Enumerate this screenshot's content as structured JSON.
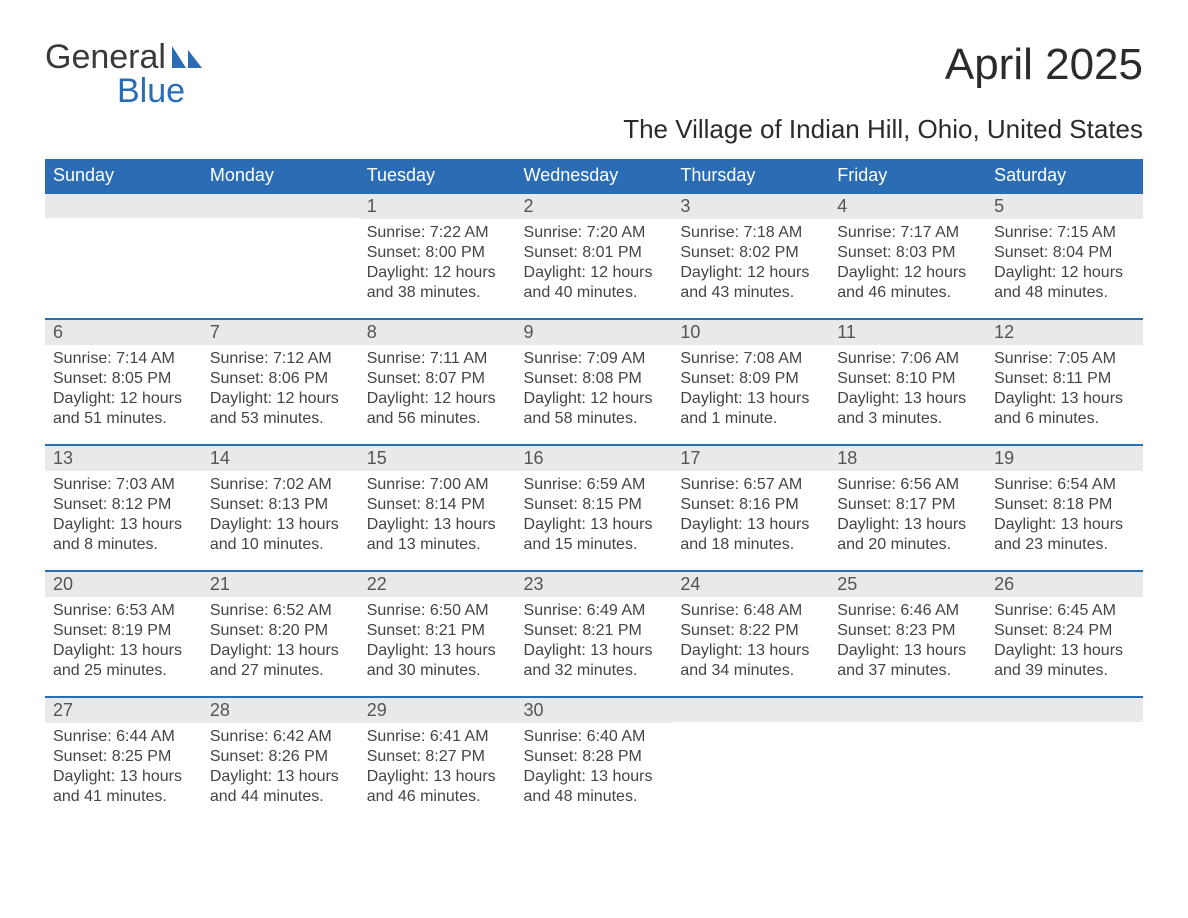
{
  "logo": {
    "line1": "General",
    "line2": "Blue",
    "accent_color": "#2a6db5"
  },
  "title": "April 2025",
  "subtitle": "The Village of Indian Hill, Ohio, United States",
  "header_bg": "#2a6db5",
  "header_text_color": "#ffffff",
  "daynum_bg": "#e9e9e9",
  "row_divider_color": "#2a6db5",
  "columns": [
    "Sunday",
    "Monday",
    "Tuesday",
    "Wednesday",
    "Thursday",
    "Friday",
    "Saturday"
  ],
  "weeks": [
    [
      null,
      null,
      {
        "n": "1",
        "sunrise": "Sunrise: 7:22 AM",
        "sunset": "Sunset: 8:00 PM",
        "daylight": "Daylight: 12 hours and 38 minutes."
      },
      {
        "n": "2",
        "sunrise": "Sunrise: 7:20 AM",
        "sunset": "Sunset: 8:01 PM",
        "daylight": "Daylight: 12 hours and 40 minutes."
      },
      {
        "n": "3",
        "sunrise": "Sunrise: 7:18 AM",
        "sunset": "Sunset: 8:02 PM",
        "daylight": "Daylight: 12 hours and 43 minutes."
      },
      {
        "n": "4",
        "sunrise": "Sunrise: 7:17 AM",
        "sunset": "Sunset: 8:03 PM",
        "daylight": "Daylight: 12 hours and 46 minutes."
      },
      {
        "n": "5",
        "sunrise": "Sunrise: 7:15 AM",
        "sunset": "Sunset: 8:04 PM",
        "daylight": "Daylight: 12 hours and 48 minutes."
      }
    ],
    [
      {
        "n": "6",
        "sunrise": "Sunrise: 7:14 AM",
        "sunset": "Sunset: 8:05 PM",
        "daylight": "Daylight: 12 hours and 51 minutes."
      },
      {
        "n": "7",
        "sunrise": "Sunrise: 7:12 AM",
        "sunset": "Sunset: 8:06 PM",
        "daylight": "Daylight: 12 hours and 53 minutes."
      },
      {
        "n": "8",
        "sunrise": "Sunrise: 7:11 AM",
        "sunset": "Sunset: 8:07 PM",
        "daylight": "Daylight: 12 hours and 56 minutes."
      },
      {
        "n": "9",
        "sunrise": "Sunrise: 7:09 AM",
        "sunset": "Sunset: 8:08 PM",
        "daylight": "Daylight: 12 hours and 58 minutes."
      },
      {
        "n": "10",
        "sunrise": "Sunrise: 7:08 AM",
        "sunset": "Sunset: 8:09 PM",
        "daylight": "Daylight: 13 hours and 1 minute."
      },
      {
        "n": "11",
        "sunrise": "Sunrise: 7:06 AM",
        "sunset": "Sunset: 8:10 PM",
        "daylight": "Daylight: 13 hours and 3 minutes."
      },
      {
        "n": "12",
        "sunrise": "Sunrise: 7:05 AM",
        "sunset": "Sunset: 8:11 PM",
        "daylight": "Daylight: 13 hours and 6 minutes."
      }
    ],
    [
      {
        "n": "13",
        "sunrise": "Sunrise: 7:03 AM",
        "sunset": "Sunset: 8:12 PM",
        "daylight": "Daylight: 13 hours and 8 minutes."
      },
      {
        "n": "14",
        "sunrise": "Sunrise: 7:02 AM",
        "sunset": "Sunset: 8:13 PM",
        "daylight": "Daylight: 13 hours and 10 minutes."
      },
      {
        "n": "15",
        "sunrise": "Sunrise: 7:00 AM",
        "sunset": "Sunset: 8:14 PM",
        "daylight": "Daylight: 13 hours and 13 minutes."
      },
      {
        "n": "16",
        "sunrise": "Sunrise: 6:59 AM",
        "sunset": "Sunset: 8:15 PM",
        "daylight": "Daylight: 13 hours and 15 minutes."
      },
      {
        "n": "17",
        "sunrise": "Sunrise: 6:57 AM",
        "sunset": "Sunset: 8:16 PM",
        "daylight": "Daylight: 13 hours and 18 minutes."
      },
      {
        "n": "18",
        "sunrise": "Sunrise: 6:56 AM",
        "sunset": "Sunset: 8:17 PM",
        "daylight": "Daylight: 13 hours and 20 minutes."
      },
      {
        "n": "19",
        "sunrise": "Sunrise: 6:54 AM",
        "sunset": "Sunset: 8:18 PM",
        "daylight": "Daylight: 13 hours and 23 minutes."
      }
    ],
    [
      {
        "n": "20",
        "sunrise": "Sunrise: 6:53 AM",
        "sunset": "Sunset: 8:19 PM",
        "daylight": "Daylight: 13 hours and 25 minutes."
      },
      {
        "n": "21",
        "sunrise": "Sunrise: 6:52 AM",
        "sunset": "Sunset: 8:20 PM",
        "daylight": "Daylight: 13 hours and 27 minutes."
      },
      {
        "n": "22",
        "sunrise": "Sunrise: 6:50 AM",
        "sunset": "Sunset: 8:21 PM",
        "daylight": "Daylight: 13 hours and 30 minutes."
      },
      {
        "n": "23",
        "sunrise": "Sunrise: 6:49 AM",
        "sunset": "Sunset: 8:21 PM",
        "daylight": "Daylight: 13 hours and 32 minutes."
      },
      {
        "n": "24",
        "sunrise": "Sunrise: 6:48 AM",
        "sunset": "Sunset: 8:22 PM",
        "daylight": "Daylight: 13 hours and 34 minutes."
      },
      {
        "n": "25",
        "sunrise": "Sunrise: 6:46 AM",
        "sunset": "Sunset: 8:23 PM",
        "daylight": "Daylight: 13 hours and 37 minutes."
      },
      {
        "n": "26",
        "sunrise": "Sunrise: 6:45 AM",
        "sunset": "Sunset: 8:24 PM",
        "daylight": "Daylight: 13 hours and 39 minutes."
      }
    ],
    [
      {
        "n": "27",
        "sunrise": "Sunrise: 6:44 AM",
        "sunset": "Sunset: 8:25 PM",
        "daylight": "Daylight: 13 hours and 41 minutes."
      },
      {
        "n": "28",
        "sunrise": "Sunrise: 6:42 AM",
        "sunset": "Sunset: 8:26 PM",
        "daylight": "Daylight: 13 hours and 44 minutes."
      },
      {
        "n": "29",
        "sunrise": "Sunrise: 6:41 AM",
        "sunset": "Sunset: 8:27 PM",
        "daylight": "Daylight: 13 hours and 46 minutes."
      },
      {
        "n": "30",
        "sunrise": "Sunrise: 6:40 AM",
        "sunset": "Sunset: 8:28 PM",
        "daylight": "Daylight: 13 hours and 48 minutes."
      },
      null,
      null,
      null
    ]
  ]
}
